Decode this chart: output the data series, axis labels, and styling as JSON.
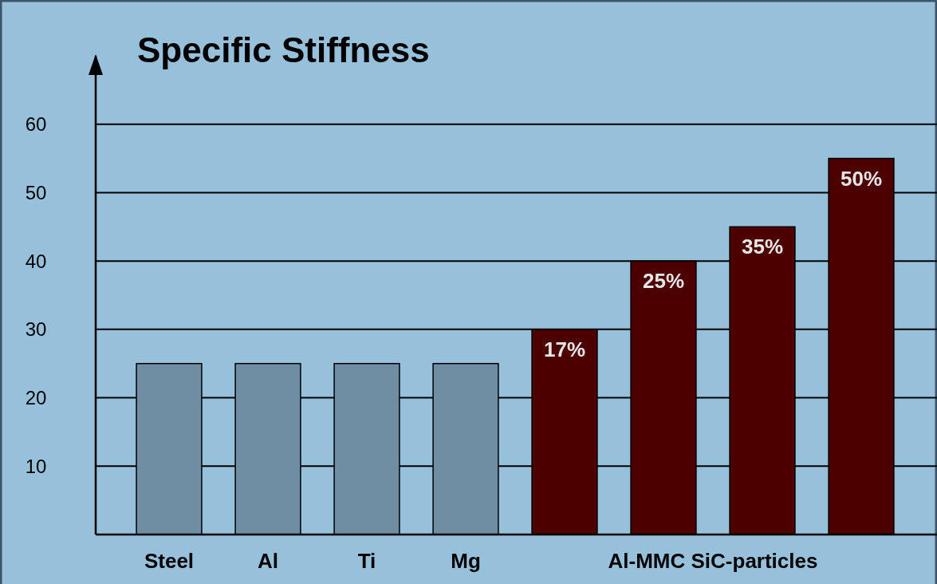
{
  "chart_data": {
    "type": "bar",
    "title": "Specific Stiffness",
    "categories": [
      "Steel",
      "Al",
      "Ti",
      "Mg",
      null,
      null,
      null,
      null
    ],
    "values": [
      25,
      25,
      25,
      25,
      30,
      40,
      45,
      55
    ],
    "colors": [
      "#6f8ea3",
      "#6f8ea3",
      "#6f8ea3",
      "#6f8ea3",
      "#4d0000",
      "#4d0000",
      "#4d0000",
      "#4d0000"
    ],
    "annotations": [
      "Al-MMC SiC-particles",
      {
        "text": "17%",
        "y": 30
      },
      {
        "text": "25%",
        "y": 40
      },
      {
        "text": "35%",
        "y": 45
      },
      {
        "text": "50%",
        "y": 55
      }
    ],
    "ylim": [
      0,
      70
    ],
    "yticks": [
      10,
      20,
      30,
      40,
      50,
      60
    ],
    "grid": "y"
  }
}
